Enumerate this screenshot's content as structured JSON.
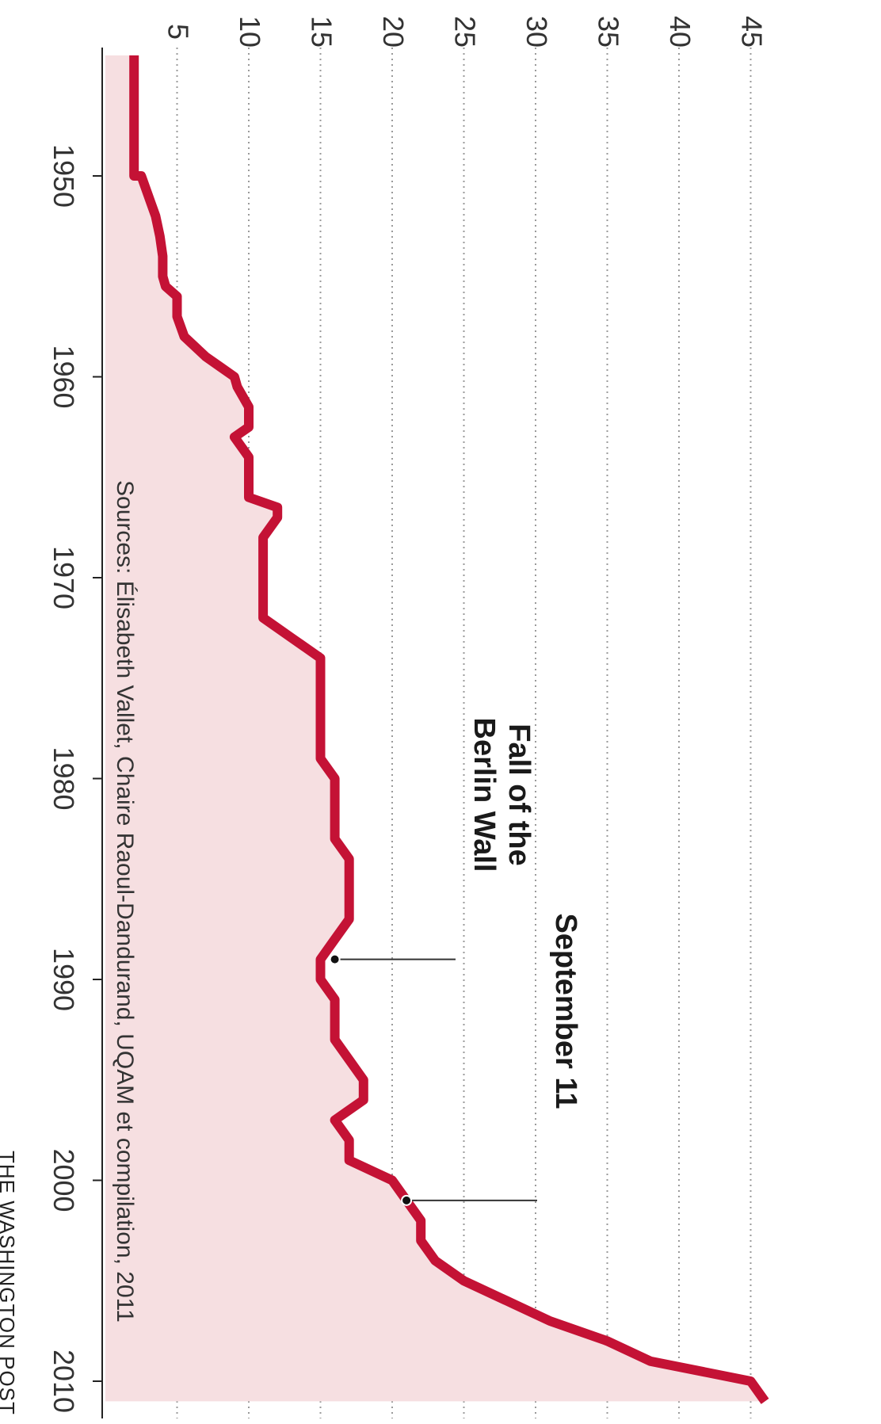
{
  "chart_data": {
    "type": "area",
    "title": "",
    "xlabel": "",
    "ylabel": "",
    "xlim": [
      1944,
      2012
    ],
    "ylim": [
      0,
      45
    ],
    "x_ticks": [
      "1950",
      "1960",
      "1970",
      "1980",
      "1990",
      "2000",
      "2010"
    ],
    "y_ticks": [
      "5",
      "10",
      "15",
      "20",
      "25",
      "30",
      "35",
      "40",
      "45"
    ],
    "grid": true,
    "colors": {
      "line": "#c41235",
      "fill": "#f6dfe1",
      "grid": "#9a9a9a"
    },
    "series": [
      {
        "x": [
          1944,
          1950,
          1950,
          1951,
          1952,
          1953,
          1954,
          1955,
          1955.5,
          1956,
          1956.5,
          1957,
          1958,
          1959,
          1959.5,
          1960,
          1960.5,
          1961.5,
          1962,
          1962.5,
          1963,
          1964,
          1965,
          1966,
          1966.5,
          1967,
          1968,
          1969,
          1970,
          1971,
          1972,
          1973,
          1974,
          1975,
          1976,
          1977,
          1978,
          1979,
          1980,
          1981,
          1982,
          1983,
          1984,
          1985,
          1986,
          1987,
          1988,
          1989,
          1990,
          1991,
          1992,
          1993,
          1994,
          1995,
          1996,
          1997,
          1998,
          1999,
          2000,
          2001,
          2002,
          2003,
          2004,
          2005,
          2006,
          2007,
          2008,
          2009,
          2010,
          2011
        ],
        "y": [
          2,
          2,
          2.5,
          3,
          3.5,
          3.8,
          4,
          4,
          4.2,
          5,
          5,
          5,
          5.5,
          7,
          8,
          9,
          9.2,
          10,
          10,
          10,
          9,
          10,
          10,
          10,
          12,
          12,
          11,
          11,
          11,
          11,
          11,
          13,
          15,
          15,
          15,
          15,
          15,
          15,
          16,
          16,
          16,
          16,
          17,
          17,
          17,
          17,
          16,
          15,
          15,
          16,
          16,
          16,
          17,
          18,
          18,
          16,
          17,
          17,
          20,
          21,
          22,
          22,
          23,
          25,
          28,
          31,
          35,
          38,
          45,
          46
        ]
      }
    ],
    "annotations": [
      {
        "lines": [
          "Fall of the",
          "Berlin Wall"
        ],
        "x": 1989,
        "y": 16
      },
      {
        "lines": [
          "September 11"
        ],
        "x": 2001,
        "y": 21
      }
    ],
    "source": "Sources: Élisabeth Vallet, Chaire Raoul-Dandurand, UQAM et compilation, 2011",
    "credit": "THE WASHINGTON POST"
  }
}
